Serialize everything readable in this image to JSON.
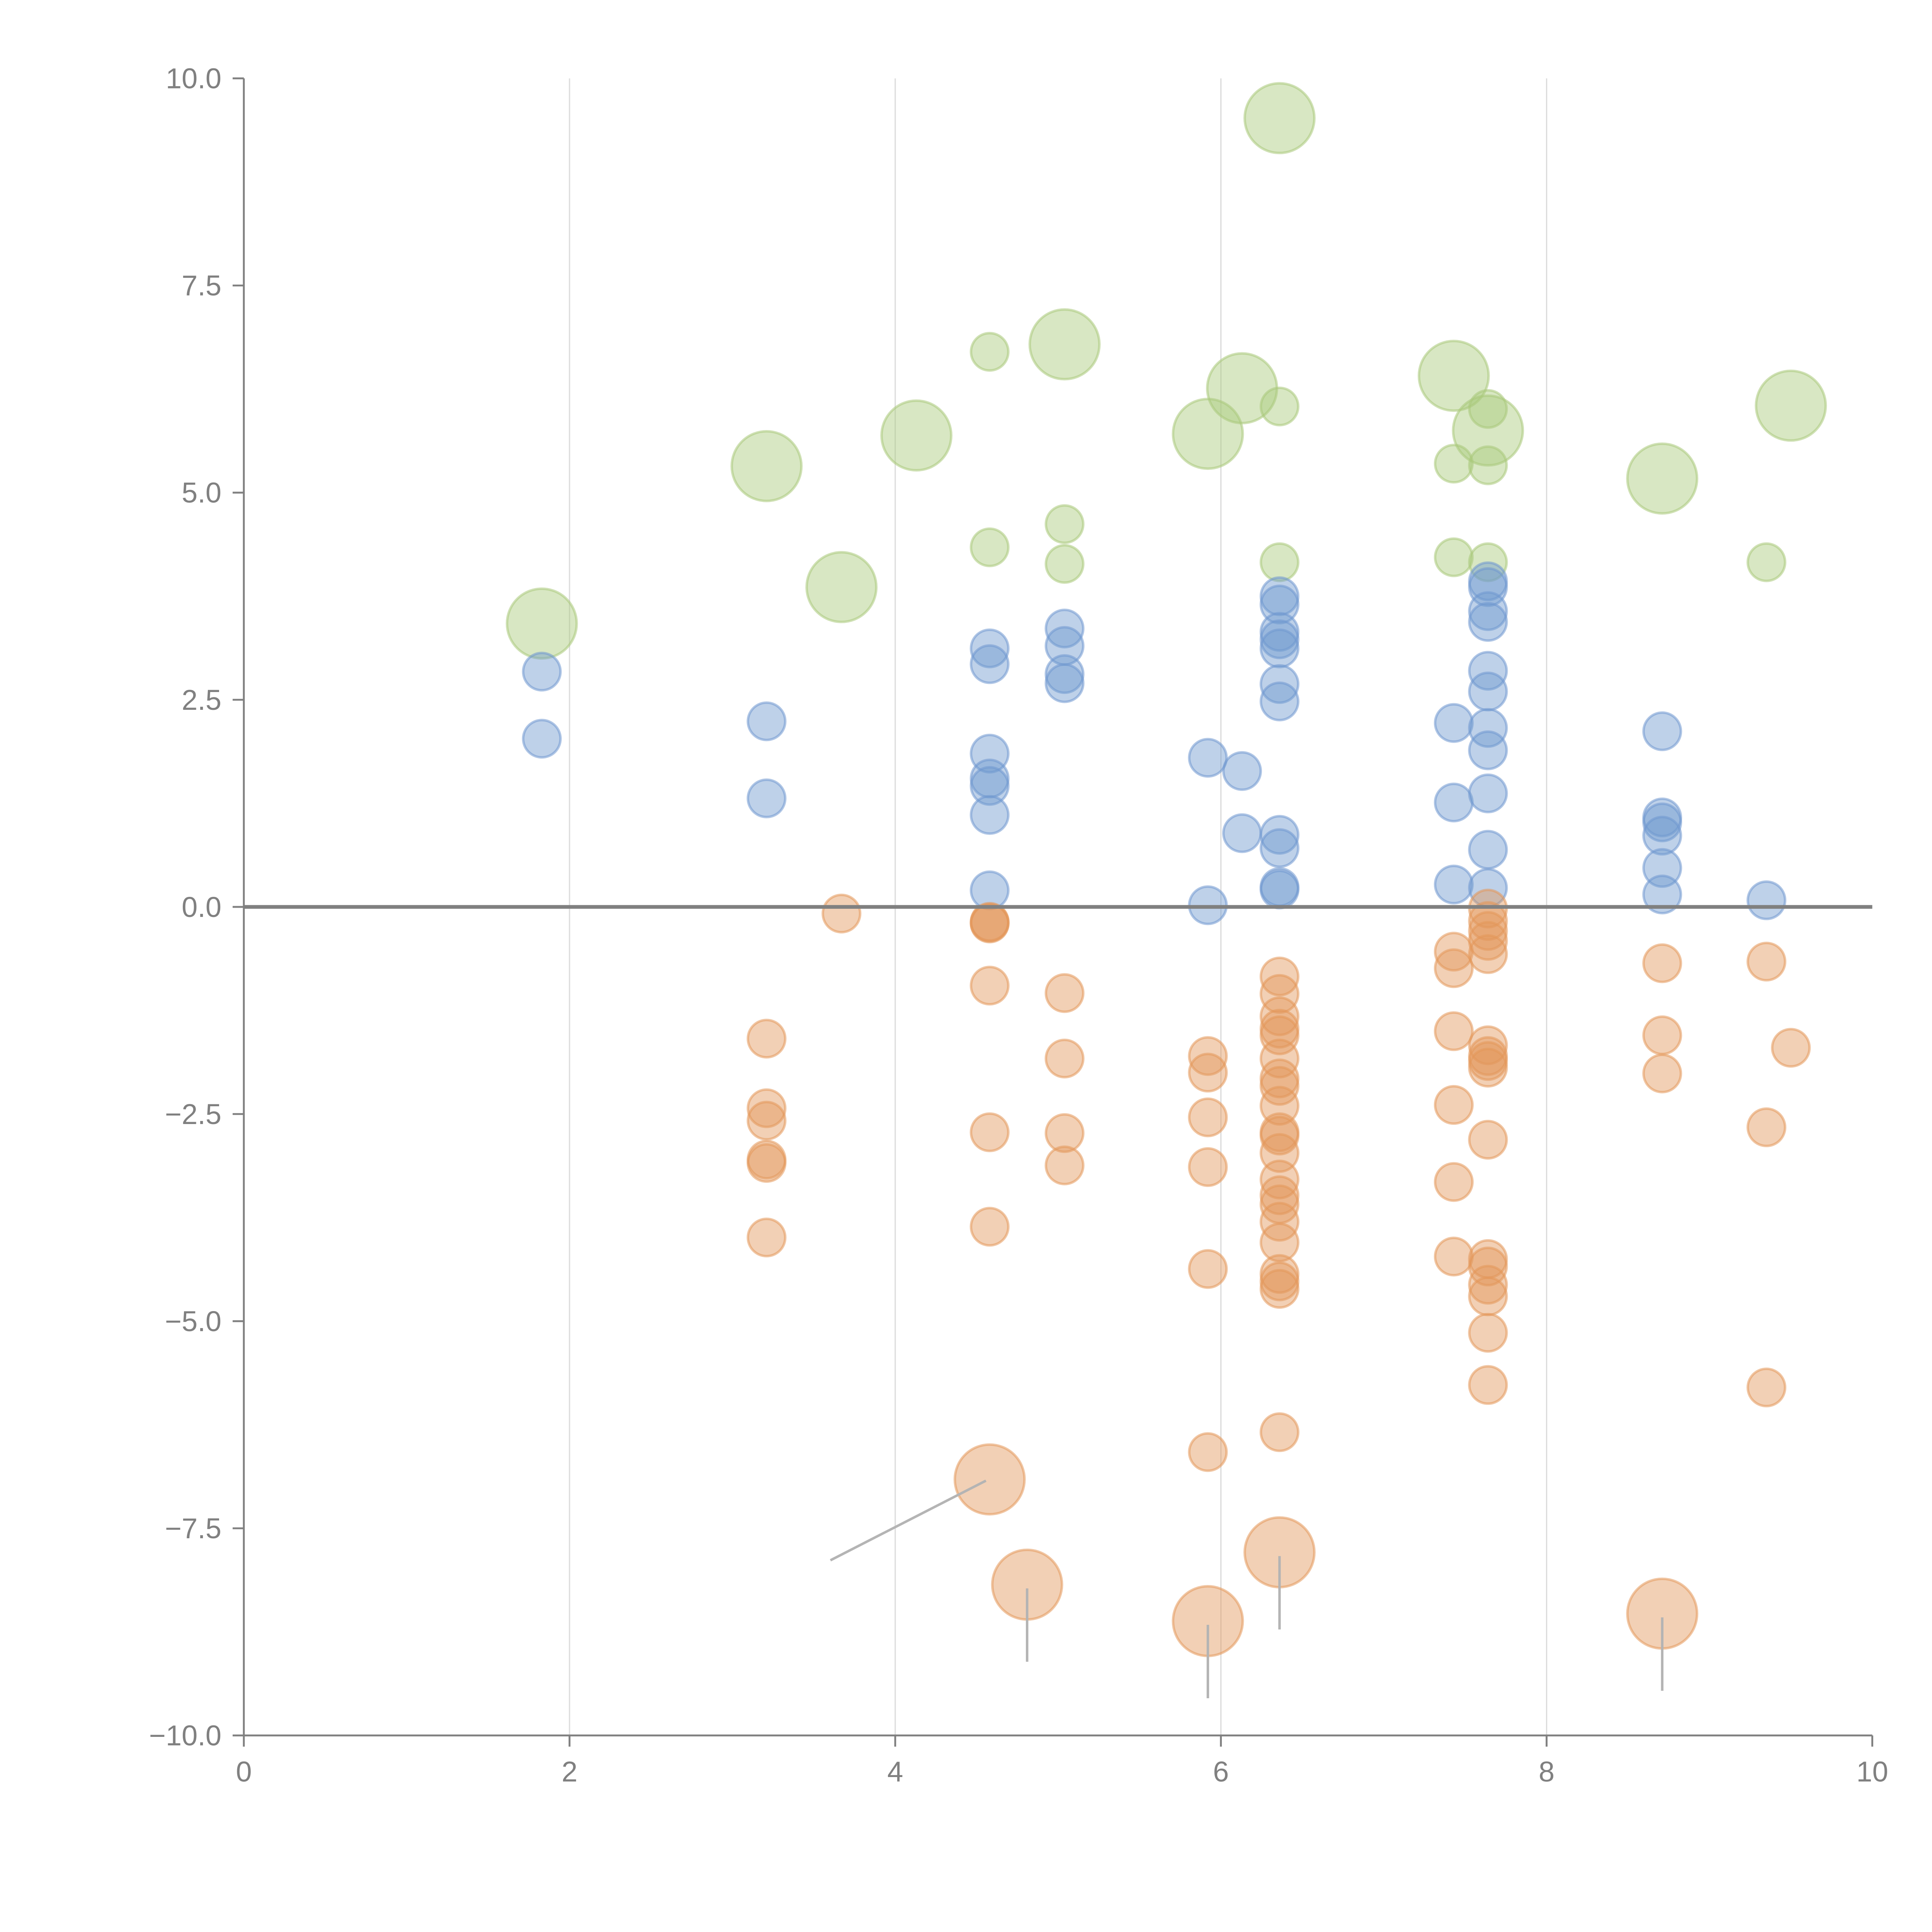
{
  "chart_data": {
    "type": "scatter",
    "title": "",
    "xlabel": "",
    "ylabel": "",
    "xlim": [
      0,
      10
    ],
    "ylim": [
      -10,
      10
    ],
    "x_ticks": [
      "0",
      "2",
      "4",
      "6",
      "8",
      "10"
    ],
    "y_ticks": [
      "10.0",
      "7.5",
      "5.0",
      "2.5",
      "0.0",
      "−2.5",
      "−5.0",
      "−7.5",
      "−10.0"
    ],
    "x_tick_values": [
      0,
      2,
      4,
      6,
      8,
      10
    ],
    "y_tick_values": [
      10,
      7.5,
      5,
      2.5,
      0,
      -2.5,
      -5,
      -7.5,
      -10
    ],
    "grid": "vertical gridlines at x ticks",
    "reference_line_y": 0,
    "legend": "none",
    "size_encoding": "relative bubble size (1 = small, 3 = large)",
    "series": [
      {
        "name": "green",
        "color": "#a9c97a",
        "points": [
          {
            "x": 1.83,
            "y": 3.42,
            "size": 3
          },
          {
            "x": 3.21,
            "y": 5.32,
            "size": 3
          },
          {
            "x": 3.67,
            "y": 3.86,
            "size": 3
          },
          {
            "x": 4.13,
            "y": 5.69,
            "size": 3
          },
          {
            "x": 5.04,
            "y": 6.79,
            "size": 3
          },
          {
            "x": 5.92,
            "y": 5.71,
            "size": 3
          },
          {
            "x": 6.13,
            "y": 6.26,
            "size": 3
          },
          {
            "x": 6.36,
            "y": 9.52,
            "size": 3
          },
          {
            "x": 7.43,
            "y": 6.41,
            "size": 3
          },
          {
            "x": 7.64,
            "y": 5.75,
            "size": 3
          },
          {
            "x": 8.71,
            "y": 5.17,
            "size": 3
          },
          {
            "x": 9.5,
            "y": 6.05,
            "size": 3
          },
          {
            "x": 4.58,
            "y": 6.7,
            "size": 1
          },
          {
            "x": 4.58,
            "y": 4.34,
            "size": 1
          },
          {
            "x": 5.04,
            "y": 4.62,
            "size": 1
          },
          {
            "x": 5.04,
            "y": 4.14,
            "size": 1
          },
          {
            "x": 6.36,
            "y": 6.04,
            "size": 1
          },
          {
            "x": 6.36,
            "y": 4.16,
            "size": 1
          },
          {
            "x": 7.43,
            "y": 5.35,
            "size": 1
          },
          {
            "x": 7.43,
            "y": 4.22,
            "size": 1
          },
          {
            "x": 7.64,
            "y": 6.01,
            "size": 1
          },
          {
            "x": 7.64,
            "y": 5.33,
            "size": 1
          },
          {
            "x": 7.64,
            "y": 4.16,
            "size": 1
          },
          {
            "x": 9.35,
            "y": 4.16,
            "size": 1
          }
        ]
      },
      {
        "name": "blue",
        "color": "#6f98cf",
        "points": [
          {
            "x": 1.83,
            "y": 2.84,
            "size": 1
          },
          {
            "x": 1.83,
            "y": 2.03,
            "size": 1
          },
          {
            "x": 3.21,
            "y": 2.24,
            "size": 1
          },
          {
            "x": 3.21,
            "y": 1.31,
            "size": 1
          },
          {
            "x": 4.58,
            "y": 3.12,
            "size": 1
          },
          {
            "x": 4.58,
            "y": 2.93,
            "size": 1
          },
          {
            "x": 4.58,
            "y": 1.85,
            "size": 1
          },
          {
            "x": 4.58,
            "y": 1.55,
            "size": 1
          },
          {
            "x": 4.58,
            "y": 1.46,
            "size": 1
          },
          {
            "x": 4.58,
            "y": 1.11,
            "size": 1
          },
          {
            "x": 4.58,
            "y": 0.2,
            "size": 1
          },
          {
            "x": 5.04,
            "y": 3.36,
            "size": 1
          },
          {
            "x": 5.04,
            "y": 3.15,
            "size": 1
          },
          {
            "x": 5.04,
            "y": 2.81,
            "size": 1
          },
          {
            "x": 5.04,
            "y": 2.7,
            "size": 1
          },
          {
            "x": 5.92,
            "y": 1.8,
            "size": 1
          },
          {
            "x": 5.92,
            "y": 0.02,
            "size": 1
          },
          {
            "x": 6.13,
            "y": 1.64,
            "size": 1
          },
          {
            "x": 6.13,
            "y": 0.89,
            "size": 1
          },
          {
            "x": 6.36,
            "y": 3.75,
            "size": 1
          },
          {
            "x": 6.36,
            "y": 3.65,
            "size": 1
          },
          {
            "x": 6.36,
            "y": 3.32,
            "size": 1
          },
          {
            "x": 6.36,
            "y": 3.23,
            "size": 1
          },
          {
            "x": 6.36,
            "y": 3.12,
            "size": 1
          },
          {
            "x": 6.36,
            "y": 2.69,
            "size": 1
          },
          {
            "x": 6.36,
            "y": 2.48,
            "size": 1
          },
          {
            "x": 6.36,
            "y": 0.87,
            "size": 1
          },
          {
            "x": 6.36,
            "y": 0.71,
            "size": 1
          },
          {
            "x": 6.36,
            "y": 0.24,
            "size": 1
          },
          {
            "x": 6.36,
            "y": 0.21,
            "size": 1
          },
          {
            "x": 7.43,
            "y": 2.22,
            "size": 1
          },
          {
            "x": 7.43,
            "y": 1.26,
            "size": 1
          },
          {
            "x": 7.43,
            "y": 0.27,
            "size": 1
          },
          {
            "x": 7.64,
            "y": 3.93,
            "size": 1
          },
          {
            "x": 7.64,
            "y": 3.86,
            "size": 1
          },
          {
            "x": 7.64,
            "y": 3.57,
            "size": 1
          },
          {
            "x": 7.64,
            "y": 3.44,
            "size": 1
          },
          {
            "x": 7.64,
            "y": 2.85,
            "size": 1
          },
          {
            "x": 7.64,
            "y": 2.6,
            "size": 1
          },
          {
            "x": 7.64,
            "y": 2.16,
            "size": 1
          },
          {
            "x": 7.64,
            "y": 1.89,
            "size": 1
          },
          {
            "x": 7.64,
            "y": 1.37,
            "size": 1
          },
          {
            "x": 7.64,
            "y": 0.69,
            "size": 1
          },
          {
            "x": 7.64,
            "y": 0.23,
            "size": 1
          },
          {
            "x": 8.71,
            "y": 2.12,
            "size": 1
          },
          {
            "x": 8.71,
            "y": 1.08,
            "size": 1
          },
          {
            "x": 8.71,
            "y": 1.02,
            "size": 1
          },
          {
            "x": 8.71,
            "y": 0.86,
            "size": 1
          },
          {
            "x": 8.71,
            "y": 0.47,
            "size": 1
          },
          {
            "x": 8.71,
            "y": 0.15,
            "size": 1
          },
          {
            "x": 9.35,
            "y": 0.08,
            "size": 1
          }
        ]
      },
      {
        "name": "orange",
        "color": "#e3975a",
        "points": [
          {
            "x": 3.21,
            "y": -1.59,
            "size": 1
          },
          {
            "x": 3.21,
            "y": -2.43,
            "size": 1
          },
          {
            "x": 3.21,
            "y": -2.58,
            "size": 1
          },
          {
            "x": 3.21,
            "y": -3.05,
            "size": 1
          },
          {
            "x": 3.21,
            "y": -3.09,
            "size": 1
          },
          {
            "x": 3.21,
            "y": -3.99,
            "size": 1
          },
          {
            "x": 3.67,
            "y": -0.08,
            "size": 1
          },
          {
            "x": 4.58,
            "y": -0.18,
            "size": 1
          },
          {
            "x": 4.58,
            "y": -0.19,
            "size": 1
          },
          {
            "x": 4.58,
            "y": -0.2,
            "size": 1
          },
          {
            "x": 4.58,
            "y": -0.95,
            "size": 1
          },
          {
            "x": 4.58,
            "y": -2.72,
            "size": 1
          },
          {
            "x": 4.58,
            "y": -3.86,
            "size": 1
          },
          {
            "x": 5.04,
            "y": -1.04,
            "size": 1
          },
          {
            "x": 5.04,
            "y": -1.83,
            "size": 1
          },
          {
            "x": 5.04,
            "y": -2.73,
            "size": 1
          },
          {
            "x": 5.04,
            "y": -3.12,
            "size": 1
          },
          {
            "x": 5.92,
            "y": -1.8,
            "size": 1
          },
          {
            "x": 5.92,
            "y": -2.0,
            "size": 1
          },
          {
            "x": 5.92,
            "y": -2.54,
            "size": 1
          },
          {
            "x": 5.92,
            "y": -3.14,
            "size": 1
          },
          {
            "x": 5.92,
            "y": -4.37,
            "size": 1
          },
          {
            "x": 5.92,
            "y": -6.58,
            "size": 1
          },
          {
            "x": 6.36,
            "y": -0.84,
            "size": 1
          },
          {
            "x": 6.36,
            "y": -1.05,
            "size": 1
          },
          {
            "x": 6.36,
            "y": -1.32,
            "size": 1
          },
          {
            "x": 6.36,
            "y": -1.47,
            "size": 1
          },
          {
            "x": 6.36,
            "y": -1.55,
            "size": 1
          },
          {
            "x": 6.36,
            "y": -1.83,
            "size": 1
          },
          {
            "x": 6.36,
            "y": -2.07,
            "size": 1
          },
          {
            "x": 6.36,
            "y": -2.16,
            "size": 1
          },
          {
            "x": 6.36,
            "y": -2.4,
            "size": 1
          },
          {
            "x": 6.36,
            "y": -2.72,
            "size": 1
          },
          {
            "x": 6.36,
            "y": -2.76,
            "size": 1
          },
          {
            "x": 6.36,
            "y": -2.97,
            "size": 1
          },
          {
            "x": 6.36,
            "y": -3.29,
            "size": 1
          },
          {
            "x": 6.36,
            "y": -3.48,
            "size": 1
          },
          {
            "x": 6.36,
            "y": -3.59,
            "size": 1
          },
          {
            "x": 6.36,
            "y": -3.8,
            "size": 1
          },
          {
            "x": 6.36,
            "y": -4.05,
            "size": 1
          },
          {
            "x": 6.36,
            "y": -4.43,
            "size": 1
          },
          {
            "x": 6.36,
            "y": -4.52,
            "size": 1
          },
          {
            "x": 6.36,
            "y": -4.61,
            "size": 1
          },
          {
            "x": 6.36,
            "y": -6.34,
            "size": 1
          },
          {
            "x": 7.43,
            "y": -0.54,
            "size": 1
          },
          {
            "x": 7.43,
            "y": -0.74,
            "size": 1
          },
          {
            "x": 7.43,
            "y": -1.5,
            "size": 1
          },
          {
            "x": 7.43,
            "y": -2.39,
            "size": 1
          },
          {
            "x": 7.43,
            "y": -3.32,
            "size": 1
          },
          {
            "x": 7.43,
            "y": -4.22,
            "size": 1
          },
          {
            "x": 7.64,
            "y": -0.02,
            "size": 1
          },
          {
            "x": 7.64,
            "y": -0.17,
            "size": 1
          },
          {
            "x": 7.64,
            "y": -0.29,
            "size": 1
          },
          {
            "x": 7.64,
            "y": -0.41,
            "size": 1
          },
          {
            "x": 7.64,
            "y": -0.57,
            "size": 1
          },
          {
            "x": 7.64,
            "y": -1.67,
            "size": 1
          },
          {
            "x": 7.64,
            "y": -1.8,
            "size": 1
          },
          {
            "x": 7.64,
            "y": -1.86,
            "size": 1
          },
          {
            "x": 7.64,
            "y": -1.94,
            "size": 1
          },
          {
            "x": 7.64,
            "y": -2.81,
            "size": 1
          },
          {
            "x": 7.64,
            "y": -4.25,
            "size": 1
          },
          {
            "x": 7.64,
            "y": -4.34,
            "size": 1
          },
          {
            "x": 7.64,
            "y": -4.56,
            "size": 1
          },
          {
            "x": 7.64,
            "y": -4.7,
            "size": 1
          },
          {
            "x": 7.64,
            "y": -5.14,
            "size": 1
          },
          {
            "x": 7.64,
            "y": -5.77,
            "size": 1
          },
          {
            "x": 8.71,
            "y": -0.68,
            "size": 1
          },
          {
            "x": 8.71,
            "y": -1.55,
            "size": 1
          },
          {
            "x": 8.71,
            "y": -2.01,
            "size": 1
          },
          {
            "x": 9.35,
            "y": -0.66,
            "size": 1
          },
          {
            "x": 9.35,
            "y": -2.66,
            "size": 1
          },
          {
            "x": 9.35,
            "y": -5.8,
            "size": 1
          },
          {
            "x": 9.5,
            "y": -1.7,
            "size": 1
          },
          {
            "x": 4.58,
            "y": -6.91,
            "size": 3
          },
          {
            "x": 4.81,
            "y": -8.18,
            "size": 3
          },
          {
            "x": 5.92,
            "y": -8.62,
            "size": 3
          },
          {
            "x": 6.36,
            "y": -7.79,
            "size": 3
          },
          {
            "x": 8.71,
            "y": -8.53,
            "size": 3
          }
        ]
      }
    ]
  }
}
